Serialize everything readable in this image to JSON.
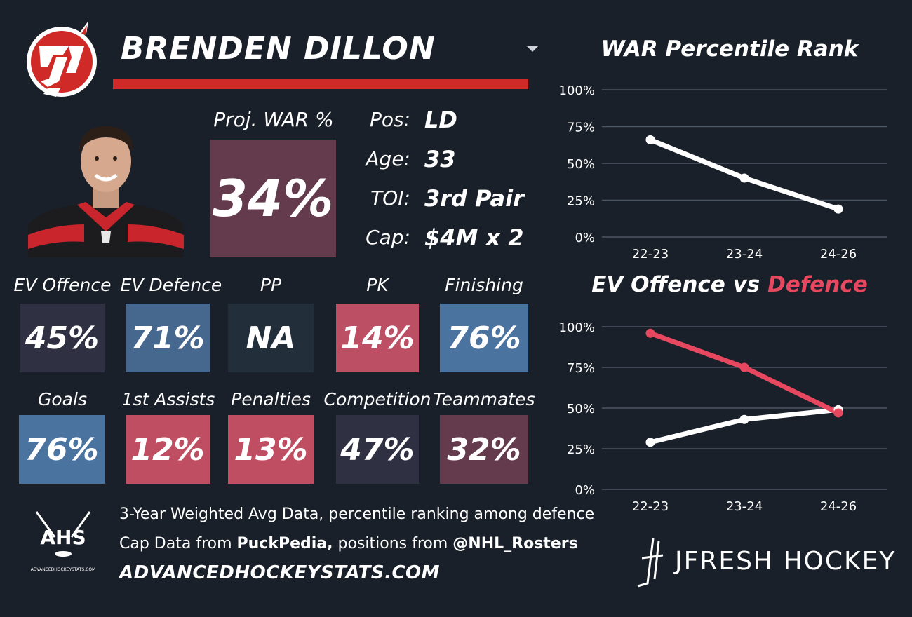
{
  "player": {
    "name": "BRENDEN DILLON",
    "proj_war_label": "Proj. WAR %",
    "proj_war_value": "34%"
  },
  "info": [
    {
      "label": "Pos:",
      "value": "LD"
    },
    {
      "label": "Age:",
      "value": "33"
    },
    {
      "label": "TOI:",
      "value": "3rd Pair"
    },
    {
      "label": "Cap:",
      "value": "$4M x 2"
    }
  ],
  "stats": [
    {
      "label": "EV Offence",
      "value": "45%",
      "color": "#2f3042"
    },
    {
      "label": "EV Defence",
      "value": "71%",
      "color": "#46688f"
    },
    {
      "label": "PP",
      "value": "NA",
      "color": "#232e3b"
    },
    {
      "label": "PK",
      "value": "14%",
      "color": "#bd4f65"
    },
    {
      "label": "Finishing",
      "value": "76%",
      "color": "#4b73a0"
    },
    {
      "label": "Goals",
      "value": "76%",
      "color": "#4b73a0"
    },
    {
      "label": "1st Assists",
      "value": "12%",
      "color": "#c04e63"
    },
    {
      "label": "Penalties",
      "value": "13%",
      "color": "#c04e63"
    },
    {
      "label": "Competition",
      "value": "47%",
      "color": "#2f3042"
    },
    {
      "label": "Teammates",
      "value": "32%",
      "color": "#633b4d"
    }
  ],
  "footer": {
    "ahs_logo_text": "AHS",
    "ahs_logo_small": "ADVANCEDHOCKEYSTATS.COM",
    "line1": "3-Year Weighted Avg Data, percentile ranking among defence",
    "line2_prefix": "Cap Data from ",
    "line2_bold1": "PuckPedia,",
    "line2_middle": " positions from ",
    "line2_bold2": "@NHL_Rosters",
    "site": "ADVANCEDHOCKEYSTATS.COM",
    "brand": "JFRESH HOCKEY"
  },
  "colors": {
    "background": "#1a2029",
    "accent_red": "#cf2a27",
    "defence_line": "#e8485f",
    "gridline": "#4c5666"
  },
  "icons": {
    "team_logo": "new-jersey-devils-logo",
    "dropdown": "caret-down-icon"
  },
  "chart_data": [
    {
      "type": "line",
      "title": "WAR Percentile Rank",
      "categories": [
        "22-23",
        "23-24",
        "24-26"
      ],
      "series": [
        {
          "values": [
            66,
            40,
            19
          ],
          "color": "#ffffff"
        }
      ],
      "ylim": [
        0,
        100
      ],
      "yticks": [
        "0%",
        "25%",
        "50%",
        "75%",
        "100%"
      ],
      "grid": true
    },
    {
      "type": "line",
      "title_part1": "EV Offence vs ",
      "title_part2": "Defence",
      "categories": [
        "22-23",
        "23-24",
        "24-26"
      ],
      "series": [
        {
          "name": "EV Offence",
          "values": [
            29,
            43,
            49
          ],
          "color": "#ffffff"
        },
        {
          "name": "Defence",
          "values": [
            96,
            75,
            47
          ],
          "color": "#e8485f"
        }
      ],
      "ylim": [
        0,
        100
      ],
      "yticks": [
        "0%",
        "25%",
        "50%",
        "75%",
        "100%"
      ],
      "grid": true
    }
  ]
}
